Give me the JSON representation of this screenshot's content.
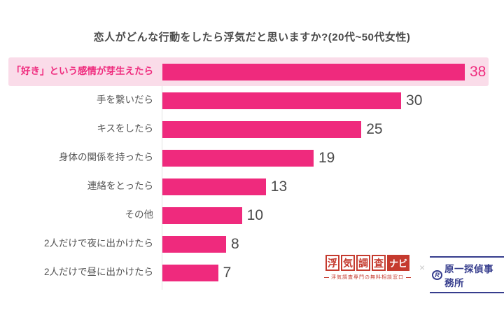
{
  "title": "恋人がどんな行動をしたら浮気だと思いますか?(20代~50代女性)",
  "chart_data": {
    "type": "bar",
    "orientation": "horizontal",
    "title": "恋人がどんな行動をしたら浮気だと思いますか?(20代~50代女性)",
    "categories": [
      "「好き」という感情が芽生えたら",
      "手を繋いだら",
      "キスをしたら",
      "身体の関係を持ったら",
      "連絡をとったら",
      "その他",
      "2人だけで夜に出かけたら",
      "2人だけで昼に出かけたら"
    ],
    "values": [
      38,
      30,
      25,
      19,
      13,
      10,
      8,
      7
    ],
    "xlim": [
      0,
      38
    ],
    "highlighted_index": 0,
    "bar_color": "#ef2a7d",
    "highlight_bg": "#fadce9",
    "highlight_text_color": "#ef2a7d",
    "value_text_color": "#4a4a4a",
    "grid": false,
    "legend": false
  },
  "footer": {
    "logo1": {
      "boxed_chars": [
        "浮",
        "気",
        "調",
        "査"
      ],
      "suffix": "ナビ",
      "tagline": "浮気調査専門の無料相談窓口",
      "brand_color": "#c53a2e"
    },
    "separator": "×",
    "logo2": {
      "emblem": "R",
      "text": "原一探偵事務所",
      "brand_color": "#363d8d"
    }
  }
}
